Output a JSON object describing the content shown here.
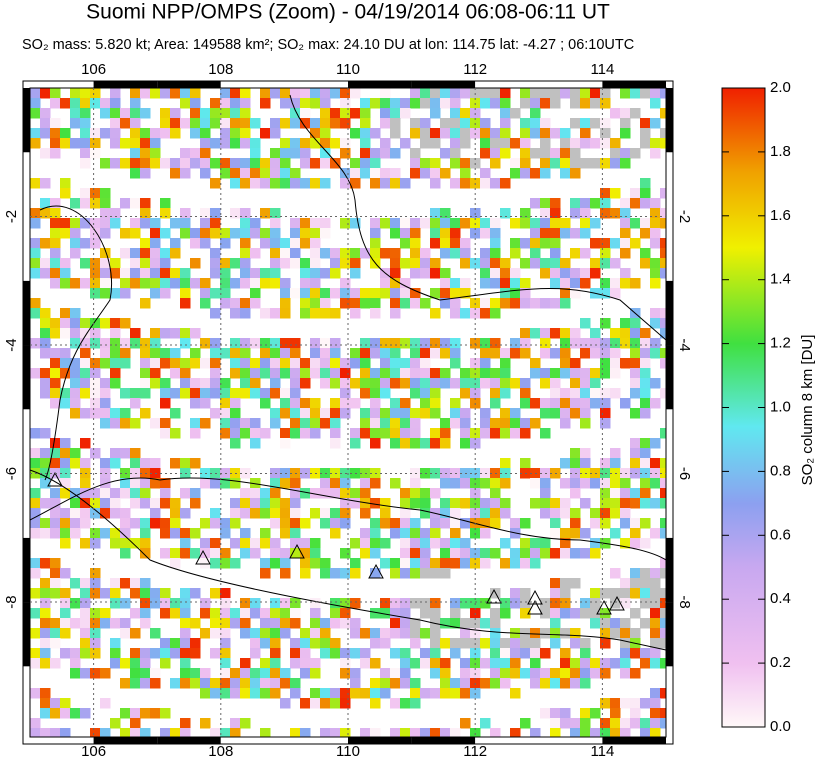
{
  "title": "Suomi NPP/OMPS (Zoom) - 04/19/2014 06:08-06:11 UT",
  "subtitle": "SO₂ mass: 5.820 kt; Area: 149588 km²; SO₂ max: 24.10 DU at lon: 114.75 lat: -4.27 ; 06:10UTC",
  "map": {
    "lonlim": [
      105,
      115
    ],
    "latlim": [
      -10.1,
      0
    ],
    "lon_ticks": [
      106,
      108,
      110,
      112,
      114
    ],
    "lat_ticks": [
      -2,
      -4,
      -6,
      -8
    ]
  },
  "colorbar": {
    "label": "SO₂ column 8 km [DU]",
    "lim": [
      0,
      2
    ],
    "ticks": [
      {
        "value": 0,
        "label": "0.0"
      },
      {
        "value": 0.2,
        "label": "0.2"
      },
      {
        "value": 0.4,
        "label": "0.4"
      },
      {
        "value": 0.6,
        "label": "0.6"
      },
      {
        "value": 0.8,
        "label": "0.8"
      },
      {
        "value": 1,
        "label": "1.0"
      },
      {
        "value": 1.2,
        "label": "1.2"
      },
      {
        "value": 1.4,
        "label": "1.4"
      },
      {
        "value": 1.6,
        "label": "1.6"
      },
      {
        "value": 1.8,
        "label": "1.8"
      },
      {
        "value": 2,
        "label": "2.0"
      }
    ]
  }
}
